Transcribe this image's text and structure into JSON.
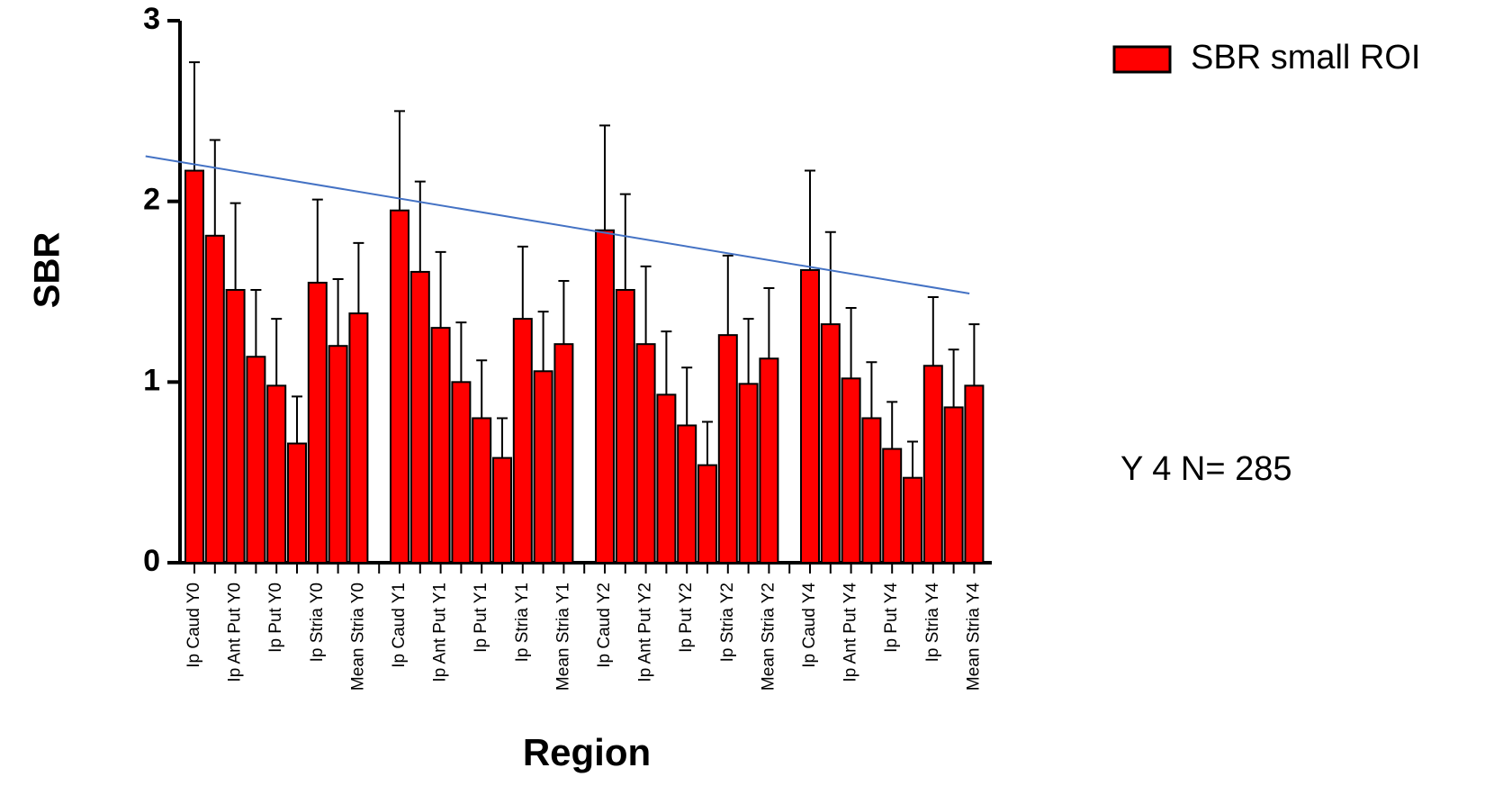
{
  "chart_data": {
    "type": "bar",
    "y_label": "SBR",
    "x_label": "Region",
    "annotation": "Y 4 N= 285",
    "legend_position": "top-right",
    "categories": [
      "Ip Caud Y0",
      null,
      "Ip Ant Put Y0",
      null,
      "Ip Put Y0",
      null,
      "Ip Stria Y0",
      null,
      "Mean Stria Y0",
      null,
      "Ip Caud Y1",
      null,
      "Ip Ant Put Y1",
      null,
      "Ip Put Y1",
      null,
      "Ip Stria Y1",
      null,
      "Mean Stria Y1",
      null,
      "Ip Caud Y2",
      null,
      "Ip Ant Put Y2",
      null,
      "Ip Put Y2",
      null,
      "Ip Stria Y2",
      null,
      "Mean Stria Y2",
      null,
      "Ip Caud Y4",
      null,
      "Ip Ant Put Y4",
      null,
      "Ip Put Y4",
      null,
      "Ip Stria Y4",
      null,
      "Mean Stria Y4"
    ],
    "series": [
      {
        "name": "SBR small ROI",
        "color": "#ff0000",
        "values": [
          2.17,
          1.81,
          1.51,
          1.14,
          0.98,
          0.66,
          1.55,
          1.2,
          1.38,
          null,
          1.95,
          1.61,
          1.3,
          1.0,
          0.8,
          0.58,
          1.35,
          1.06,
          1.21,
          null,
          1.84,
          1.51,
          1.21,
          0.93,
          0.76,
          0.54,
          1.26,
          0.99,
          1.13,
          null,
          1.62,
          1.32,
          1.02,
          0.8,
          0.63,
          0.47,
          1.09,
          0.86,
          0.98
        ],
        "errors": [
          0.6,
          0.53,
          0.48,
          0.37,
          0.37,
          0.26,
          0.46,
          0.37,
          0.39,
          null,
          0.55,
          0.5,
          0.42,
          0.33,
          0.32,
          0.22,
          0.4,
          0.33,
          0.35,
          null,
          0.58,
          0.53,
          0.43,
          0.35,
          0.32,
          0.24,
          0.44,
          0.36,
          0.39,
          null,
          0.55,
          0.51,
          0.39,
          0.31,
          0.26,
          0.2,
          0.38,
          0.32,
          0.34
        ]
      }
    ],
    "trend_line": {
      "color": "#4472c4",
      "x": [
        -2.38,
        37.77
      ],
      "y": [
        2.25,
        1.49
      ]
    },
    "ylim": [
      0,
      3
    ],
    "yticks": [
      0,
      1,
      2,
      3
    ]
  }
}
